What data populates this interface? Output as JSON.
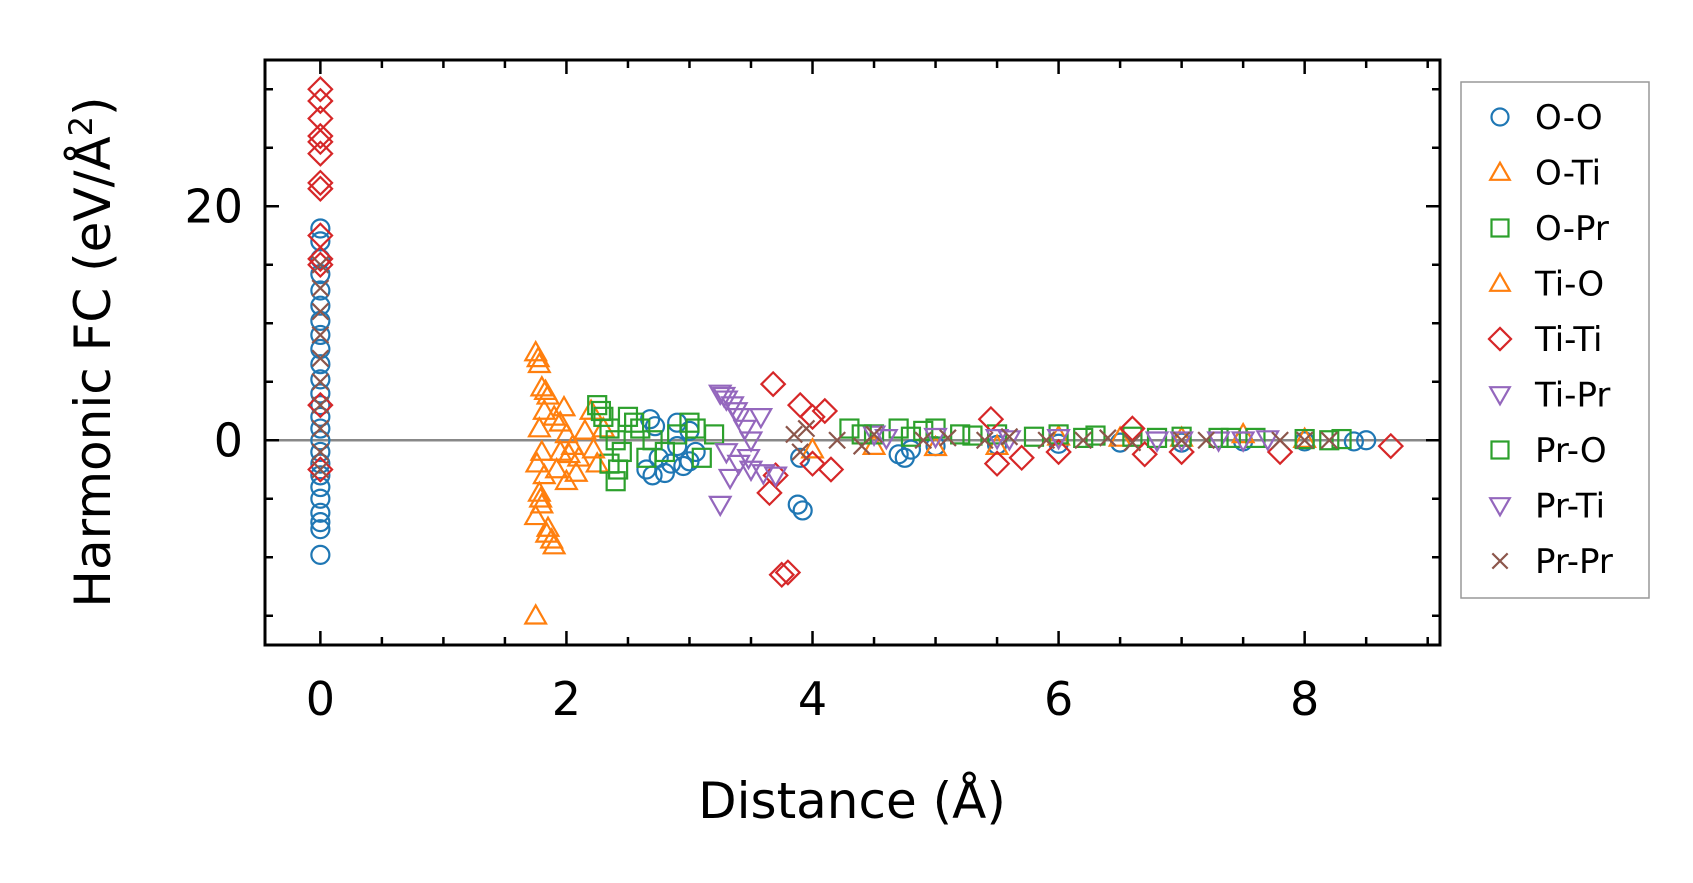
{
  "chart_data": {
    "type": "scatter",
    "title": "",
    "xlabel": "Distance (Å)",
    "ylabel_text": "Harmonic FC (eV/Å",
    "ylabel_sup": "2",
    "ylabel_close": ")",
    "xlim": [
      -0.45,
      9.1
    ],
    "ylim": [
      -17.5,
      32.5
    ],
    "x_ticks": [
      0,
      2,
      4,
      6,
      8
    ],
    "x_tick_labels": [
      "0",
      "2",
      "4",
      "6",
      "8"
    ],
    "x_minor_step": 0.5,
    "y_ticks": [
      0,
      20
    ],
    "y_tick_labels": [
      "0",
      "20"
    ],
    "y_minor_step": 5,
    "zero_line": true,
    "grid": false,
    "legend_position": "outside-right",
    "series": [
      {
        "name": "O-O",
        "marker": "circle",
        "color": "#1f77b4",
        "points": [
          [
            0,
            18.1
          ],
          [
            0,
            17.0
          ],
          [
            0,
            15.5
          ],
          [
            0,
            14.2
          ],
          [
            0,
            12.8
          ],
          [
            0,
            11.5
          ],
          [
            0,
            10.2
          ],
          [
            0,
            9.0
          ],
          [
            0,
            7.8
          ],
          [
            0,
            6.5
          ],
          [
            0,
            5.2
          ],
          [
            0,
            4.0
          ],
          [
            0,
            3.0
          ],
          [
            0,
            2.0
          ],
          [
            0,
            1.0
          ],
          [
            0,
            0.0
          ],
          [
            0,
            -1.0
          ],
          [
            0,
            -2.0
          ],
          [
            0,
            -3.0
          ],
          [
            0,
            -4.0
          ],
          [
            0,
            -5.0
          ],
          [
            0,
            -6.2
          ],
          [
            0,
            -7.0
          ],
          [
            0,
            -7.6
          ],
          [
            0,
            -9.8
          ],
          [
            2.65,
            -2.5
          ],
          [
            2.7,
            -3.0
          ],
          [
            2.75,
            -1.5
          ],
          [
            2.8,
            -2.8
          ],
          [
            2.68,
            1.8
          ],
          [
            2.72,
            1.2
          ],
          [
            2.85,
            -2.0
          ],
          [
            2.9,
            1.5
          ],
          [
            2.95,
            -2.2
          ],
          [
            3.0,
            -1.8
          ],
          [
            3.05,
            -1.0
          ],
          [
            3.0,
            0.8
          ],
          [
            2.9,
            -0.5
          ],
          [
            3.88,
            -5.5
          ],
          [
            3.92,
            -6.0
          ],
          [
            3.9,
            -1.5
          ],
          [
            4.7,
            -1.2
          ],
          [
            4.75,
            -1.5
          ],
          [
            4.8,
            -0.8
          ],
          [
            5.0,
            -0.5
          ],
          [
            5.5,
            -0.4
          ],
          [
            6.0,
            -0.3
          ],
          [
            6.5,
            -0.2
          ],
          [
            7.0,
            -0.2
          ],
          [
            7.5,
            -0.1
          ],
          [
            8.0,
            -0.1
          ],
          [
            8.4,
            -0.1
          ],
          [
            8.5,
            0.0
          ]
        ]
      },
      {
        "name": "O-Ti",
        "marker": "triangle-up",
        "color": "#ff7f0e",
        "points": [
          [
            1.75,
            7.5
          ],
          [
            1.78,
            6.5
          ],
          [
            1.8,
            4.5
          ],
          [
            1.85,
            3.8
          ],
          [
            1.82,
            2.5
          ],
          [
            1.78,
            1.0
          ],
          [
            1.8,
            -1.0
          ],
          [
            1.76,
            -2.0
          ],
          [
            1.82,
            -3.0
          ],
          [
            1.78,
            -4.5
          ],
          [
            1.8,
            -5.5
          ],
          [
            1.75,
            -6.5
          ],
          [
            1.85,
            -7.5
          ],
          [
            1.88,
            -8.5
          ],
          [
            1.9,
            -9.0
          ],
          [
            1.75,
            -15.0
          ],
          [
            1.9,
            2.0
          ],
          [
            1.95,
            1.5
          ],
          [
            2.0,
            0.5
          ],
          [
            2.05,
            -0.5
          ],
          [
            2.1,
            -1.5
          ],
          [
            1.92,
            -2.5
          ],
          [
            2.0,
            -3.5
          ],
          [
            1.95,
            -1.0
          ],
          [
            2.2,
            2.5
          ],
          [
            2.25,
            -2.0
          ],
          [
            2.3,
            1.0
          ],
          [
            4.0,
            -0.8
          ],
          [
            4.5,
            -0.5
          ],
          [
            5.0,
            -0.6
          ],
          [
            5.5,
            -0.5
          ],
          [
            6.0,
            0.3
          ],
          [
            6.5,
            0.2
          ],
          [
            7.0,
            0.2
          ],
          [
            7.5,
            0.5
          ],
          [
            8.0,
            0.1
          ]
        ]
      },
      {
        "name": "O-Pr",
        "marker": "square",
        "color": "#2ca02c",
        "points": [
          [
            2.25,
            3.0
          ],
          [
            2.3,
            2.0
          ],
          [
            2.35,
            1.0
          ],
          [
            2.4,
            0.0
          ],
          [
            2.45,
            -1.0
          ],
          [
            2.35,
            -2.0
          ],
          [
            2.4,
            -3.5
          ],
          [
            2.5,
            2.0
          ],
          [
            2.6,
            1.0
          ],
          [
            2.7,
            0.0
          ],
          [
            2.8,
            -1.0
          ],
          [
            2.9,
            0.5
          ],
          [
            3.0,
            1.5
          ],
          [
            3.1,
            -1.5
          ],
          [
            3.2,
            0.5
          ],
          [
            4.3,
            1.0
          ],
          [
            4.5,
            0.5
          ],
          [
            4.7,
            1.0
          ],
          [
            4.9,
            0.8
          ],
          [
            5.0,
            1.0
          ],
          [
            5.2,
            0.5
          ],
          [
            5.5,
            0.5
          ],
          [
            5.8,
            0.3
          ],
          [
            6.0,
            0.5
          ],
          [
            6.3,
            0.4
          ],
          [
            6.6,
            0.3
          ],
          [
            7.0,
            0.3
          ],
          [
            7.3,
            0.2
          ],
          [
            7.6,
            0.2
          ],
          [
            8.0,
            0.1
          ],
          [
            8.3,
            0.1
          ]
        ]
      },
      {
        "name": "Ti-O",
        "marker": "triangle-up",
        "color": "#ff7f0e",
        "points": [
          [
            1.77,
            7.0
          ],
          [
            1.83,
            4.2
          ],
          [
            1.79,
            -5.0
          ],
          [
            1.84,
            -8.0
          ],
          [
            1.98,
            2.8
          ],
          [
            2.02,
            -1.2
          ],
          [
            2.08,
            -2.8
          ],
          [
            2.15,
            0.8
          ],
          [
            2.22,
            -0.8
          ]
        ]
      },
      {
        "name": "Ti-Ti",
        "marker": "diamond",
        "color": "#d62728",
        "points": [
          [
            0,
            30.0
          ],
          [
            0,
            29.0
          ],
          [
            0,
            27.5
          ],
          [
            0,
            26.0
          ],
          [
            0,
            25.5
          ],
          [
            0,
            24.5
          ],
          [
            0,
            22.0
          ],
          [
            0,
            21.5
          ],
          [
            0,
            17.5
          ],
          [
            0,
            15.5
          ],
          [
            0,
            15.0
          ],
          [
            0,
            3.0
          ],
          [
            0,
            -2.5
          ],
          [
            3.68,
            4.8
          ],
          [
            3.65,
            -4.5
          ],
          [
            3.7,
            -3.0
          ],
          [
            3.75,
            -11.5
          ],
          [
            3.8,
            -11.3
          ],
          [
            3.9,
            3.0
          ],
          [
            4.0,
            2.0
          ],
          [
            4.1,
            2.5
          ],
          [
            4.15,
            -2.5
          ],
          [
            4.0,
            -2.0
          ],
          [
            5.45,
            1.8
          ],
          [
            5.5,
            -2.0
          ],
          [
            5.7,
            -1.5
          ],
          [
            6.0,
            -1.0
          ],
          [
            6.6,
            1.0
          ],
          [
            6.7,
            -1.2
          ],
          [
            7.0,
            -1.0
          ],
          [
            7.8,
            -1.0
          ],
          [
            8.7,
            -0.5
          ]
        ]
      },
      {
        "name": "Ti-Pr",
        "marker": "triangle-down",
        "color": "#9467bd",
        "points": [
          [
            3.25,
            4.0
          ],
          [
            3.3,
            3.5
          ],
          [
            3.35,
            3.0
          ],
          [
            3.4,
            2.0
          ],
          [
            3.45,
            1.0
          ],
          [
            3.5,
            0.0
          ],
          [
            3.3,
            -1.0
          ],
          [
            3.4,
            -2.0
          ],
          [
            3.5,
            -2.5
          ],
          [
            3.6,
            -2.8
          ],
          [
            3.7,
            -3.0
          ],
          [
            3.25,
            -5.5
          ],
          [
            4.5,
            0.5
          ],
          [
            5.0,
            0.3
          ],
          [
            5.5,
            0.2
          ],
          [
            6.0,
            0.2
          ],
          [
            7.0,
            0.0
          ],
          [
            7.3,
            0.0
          ],
          [
            7.7,
            0.1
          ]
        ]
      },
      {
        "name": "Pr-O",
        "marker": "square",
        "color": "#2ca02c",
        "points": [
          [
            2.28,
            2.5
          ],
          [
            2.42,
            -2.5
          ],
          [
            2.55,
            1.5
          ],
          [
            2.65,
            -1.5
          ],
          [
            3.05,
            1.0
          ],
          [
            4.4,
            0.5
          ],
          [
            4.8,
            0.3
          ],
          [
            5.3,
            0.4
          ],
          [
            6.2,
            0.2
          ],
          [
            6.8,
            0.2
          ],
          [
            7.4,
            0.2
          ],
          [
            8.2,
            0.0
          ]
        ]
      },
      {
        "name": "Pr-Ti",
        "marker": "triangle-down",
        "color": "#9467bd",
        "points": [
          [
            3.28,
            3.8
          ],
          [
            3.38,
            2.5
          ],
          [
            3.48,
            -1.5
          ],
          [
            3.58,
            2.0
          ],
          [
            3.33,
            -3.2
          ],
          [
            4.6,
            0.2
          ],
          [
            5.6,
            0.1
          ],
          [
            6.8,
            0.0
          ],
          [
            7.5,
            0.0
          ]
        ]
      },
      {
        "name": "Pr-Pr",
        "marker": "x",
        "color": "#8c564b",
        "points": [
          [
            0,
            15.0
          ],
          [
            0,
            13.0
          ],
          [
            0,
            11.0
          ],
          [
            0,
            9.0
          ],
          [
            0,
            7.0
          ],
          [
            0,
            5.0
          ],
          [
            0,
            3.0
          ],
          [
            0,
            1.0
          ],
          [
            0,
            -1.0
          ],
          [
            0,
            -2.5
          ],
          [
            3.85,
            0.5
          ],
          [
            3.9,
            -1.0
          ],
          [
            3.95,
            1.0
          ],
          [
            4.2,
            0.0
          ],
          [
            4.4,
            -0.5
          ],
          [
            4.5,
            0.5
          ],
          [
            4.9,
            0.0
          ],
          [
            5.1,
            0.2
          ],
          [
            5.4,
            0.0
          ],
          [
            5.6,
            0.3
          ],
          [
            5.9,
            0.0
          ],
          [
            6.2,
            0.0
          ],
          [
            6.4,
            0.2
          ],
          [
            6.6,
            -0.2
          ],
          [
            7.0,
            0.0
          ],
          [
            7.2,
            0.0
          ],
          [
            7.8,
            0.0
          ],
          [
            8.0,
            0.0
          ],
          [
            8.2,
            0.0
          ]
        ]
      }
    ]
  }
}
